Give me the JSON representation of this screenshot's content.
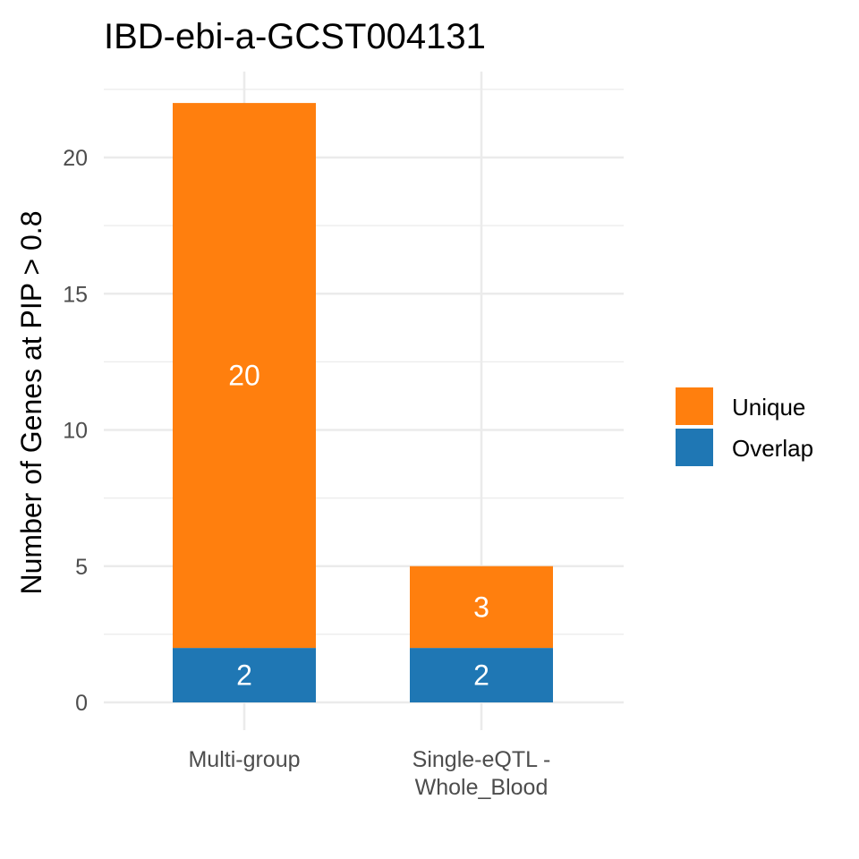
{
  "chart_data": {
    "type": "bar",
    "stacked": true,
    "title": "IBD-ebi-a-GCST004131",
    "xlabel": "",
    "ylabel": "Number of Genes at PIP > 0.8",
    "categories": [
      [
        "Multi-group"
      ],
      [
        "Single-eQTL -",
        "Whole_Blood"
      ]
    ],
    "series": [
      {
        "name": "Overlap",
        "color": "#1f77b4",
        "values": [
          2,
          2
        ]
      },
      {
        "name": "Unique",
        "color": "#ff7f0e",
        "values": [
          20,
          3
        ]
      }
    ],
    "ylim": [
      0,
      23.1
    ],
    "yticks": [
      0,
      5,
      10,
      15,
      20
    ],
    "grid": true,
    "legend": {
      "position": "right",
      "order": [
        "Unique",
        "Overlap"
      ]
    }
  }
}
